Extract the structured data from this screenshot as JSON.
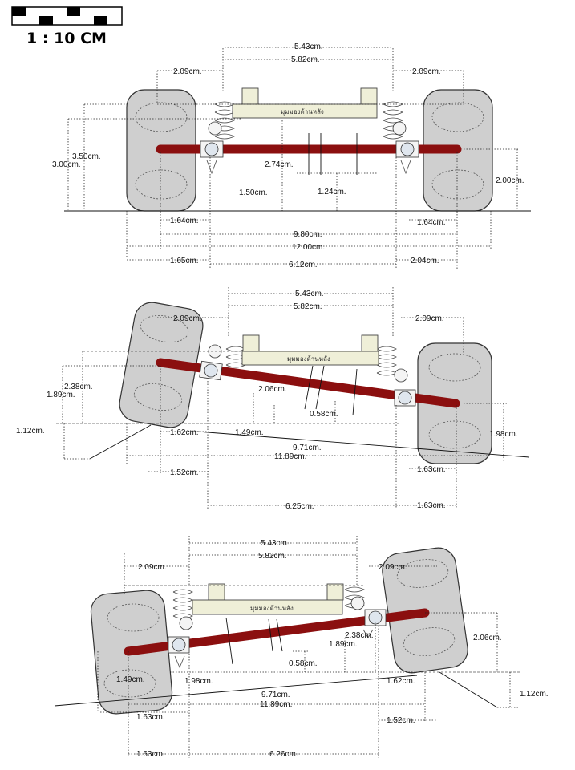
{
  "scale_label": "1 : 10 CM",
  "frame_label": "มุมมองด้านหลัง",
  "colors": {
    "axle": "#8b0f0f",
    "tire": "#cfcfcf",
    "frame": "#efefd8"
  },
  "view1": {
    "top_543": "5.43cm.",
    "top_582": "5.82cm.",
    "left_209": "2.09cm.",
    "right_209": "2.09cm.",
    "h_350": "3.50cm.",
    "h_300": "3.00cm.",
    "h_274": "2.74cm.",
    "h_150": "1.50cm.",
    "h_124": "1.24cm.",
    "h_200": "2.00cm.",
    "b_164_left": "1.64cm.",
    "b_164_right": "1.64cm.",
    "b_980": "9.80cm.",
    "b_1200": "12.00cm.",
    "b_165": "1.65cm.",
    "b_612": "6.12cm.",
    "b_204": "2.04cm."
  },
  "view2": {
    "top_543": "5.43cm.",
    "top_582": "5.82cm.",
    "left_209": "2.09cm.",
    "right_209": "2.09cm.",
    "h_238": "2.38cm.",
    "h_189": "1.89cm.",
    "h_112": "1.12cm.",
    "h_206": "2.06cm.",
    "h_058": "0.58cm.",
    "h_149": "1.49cm.",
    "h_198": "1.98cm.",
    "b_162": "1.62cm.",
    "b_971": "9.71cm.",
    "b_1189": "11.89cm.",
    "b_152": "1.52cm.",
    "b_163_a": "1.63cm.",
    "b_625": "6.25cm.",
    "b_163_b": "1.63cm."
  },
  "view3": {
    "top_543": "5.43cm.",
    "top_582": "5.82cm.",
    "left_209": "2.09cm.",
    "right_209": "2.09cm.",
    "h_238": "2.38cm.",
    "h_189": "1.89cm.",
    "h_058": "0.58cm.",
    "h_206": "2.06cm.",
    "h_149": "1.49cm.",
    "h_198": "1.98cm.",
    "b_162": "1.62cm.",
    "h_112": "1.12cm.",
    "b_971": "9.71cm.",
    "b_1189": "11.89cm.",
    "b_163_a": "1.63cm.",
    "b_152": "1.52cm.",
    "b_163_b": "1.63cm.",
    "b_626": "6.26cm."
  }
}
